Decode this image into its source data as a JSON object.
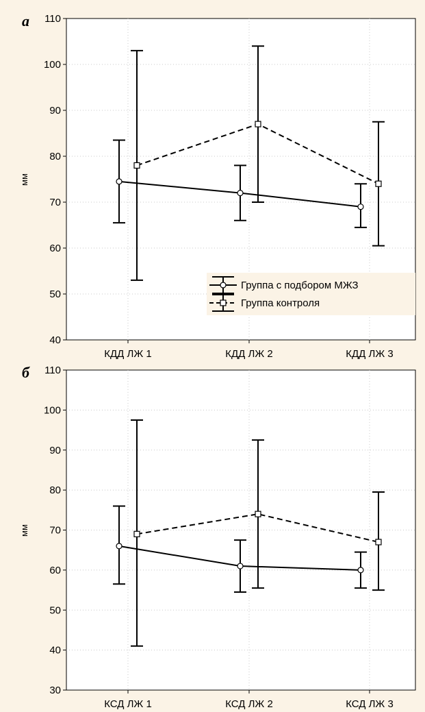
{
  "chart_data": [
    {
      "type": "line",
      "panel_label": "а",
      "title": "",
      "xlabel": "",
      "ylabel": "мм",
      "categories": [
        "КДД ЛЖ 1",
        "КДД ЛЖ 2",
        "КДД ЛЖ 3"
      ],
      "ylim": [
        40,
        110
      ],
      "yticks": [
        40,
        50,
        60,
        70,
        80,
        90,
        100,
        110
      ],
      "grid": true,
      "legend": "bottom-right",
      "series": [
        {
          "name": "Группа с подбором МЖЗ",
          "line_style": "solid",
          "marker": "circle",
          "color": "#000000",
          "values": [
            74.5,
            72,
            69
          ],
          "lower": [
            65.5,
            66,
            64.5
          ],
          "upper": [
            83.5,
            78,
            74
          ]
        },
        {
          "name": "Группа контроля",
          "line_style": "dashed",
          "marker": "square",
          "color": "#000000",
          "values": [
            78,
            87,
            74
          ],
          "lower": [
            53,
            70,
            60.5
          ],
          "upper": [
            103,
            104,
            87.5
          ]
        }
      ]
    },
    {
      "type": "line",
      "panel_label": "б",
      "title": "",
      "xlabel": "",
      "ylabel": "мм",
      "categories": [
        "КСД ЛЖ 1",
        "КСД ЛЖ 2",
        "КСД ЛЖ 3"
      ],
      "ylim": [
        30,
        110
      ],
      "yticks": [
        30,
        40,
        50,
        60,
        70,
        80,
        90,
        100,
        110
      ],
      "grid": true,
      "legend": "none",
      "series": [
        {
          "name": "",
          "line_style": "solid",
          "marker": "circle",
          "color": "#000000",
          "values": [
            66,
            61,
            60
          ],
          "lower": [
            56.5,
            54.5,
            55.5
          ],
          "upper": [
            76,
            67.5,
            64.5
          ]
        },
        {
          "name": "",
          "line_style": "dashed",
          "marker": "square",
          "color": "#000000",
          "values": [
            69,
            74,
            67
          ],
          "lower": [
            41,
            55.5,
            55
          ],
          "upper": [
            97.5,
            92.5,
            79.5
          ]
        }
      ]
    }
  ]
}
